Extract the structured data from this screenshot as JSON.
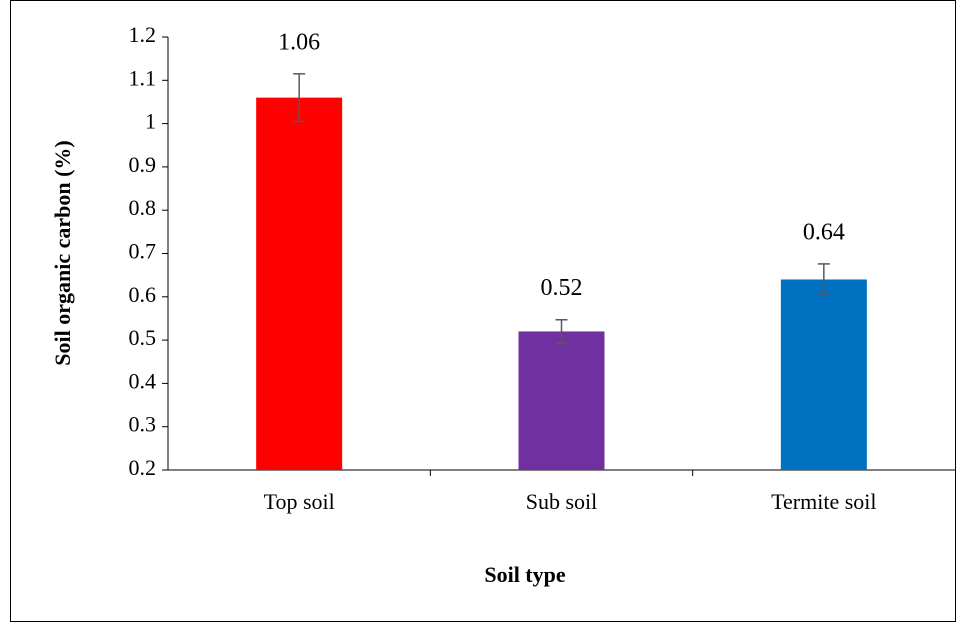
{
  "chart_data": {
    "type": "bar",
    "categories": [
      "Top soil",
      "Sub soil",
      "Termite soil"
    ],
    "values": [
      1.06,
      0.52,
      0.64
    ],
    "errors": [
      0.055,
      0.027,
      0.036
    ],
    "colors": [
      "#ff0000",
      "#7030a0",
      "#0070c0"
    ],
    "error_color": "#595959",
    "x_label": "Soil type",
    "y_label": "Soil organic carbon (%)",
    "ylim": [
      0.2,
      1.2
    ],
    "yticks": [
      0.2,
      0.3,
      0.4,
      0.5,
      0.6,
      0.7,
      0.8,
      0.9,
      1,
      1.1,
      1.2
    ],
    "grid": false
  }
}
